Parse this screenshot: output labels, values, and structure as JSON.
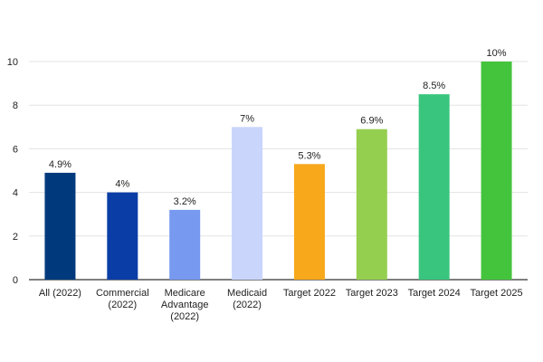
{
  "chart_data": {
    "type": "bar",
    "title": "",
    "xlabel": "",
    "ylabel": "",
    "ylim": [
      0,
      10
    ],
    "yticks": [
      "0",
      "2",
      "4",
      "6",
      "8",
      "10"
    ],
    "grid": true,
    "legend": "none",
    "categories": [
      [
        "All (2022)"
      ],
      [
        "Commercial",
        "(2022)"
      ],
      [
        "Medicare",
        "Advantage",
        "(2022)"
      ],
      [
        "Medicaid",
        "(2022)"
      ],
      [
        "Target 2022"
      ],
      [
        "Target 2023"
      ],
      [
        "Target 2024"
      ],
      [
        "Target 2025"
      ]
    ],
    "values": [
      4.9,
      4,
      3.2,
      7,
      5.3,
      6.9,
      8.5,
      10
    ],
    "data_labels": [
      "4.9%",
      "4%",
      "3.2%",
      "7%",
      "5.3%",
      "6.9%",
      "8.5%",
      "10%"
    ],
    "colors": [
      "#003a7d",
      "#0a3ea6",
      "#7799f0",
      "#c9d5fb",
      "#f7a81b",
      "#95cf4f",
      "#39c57d",
      "#44c43c"
    ]
  }
}
